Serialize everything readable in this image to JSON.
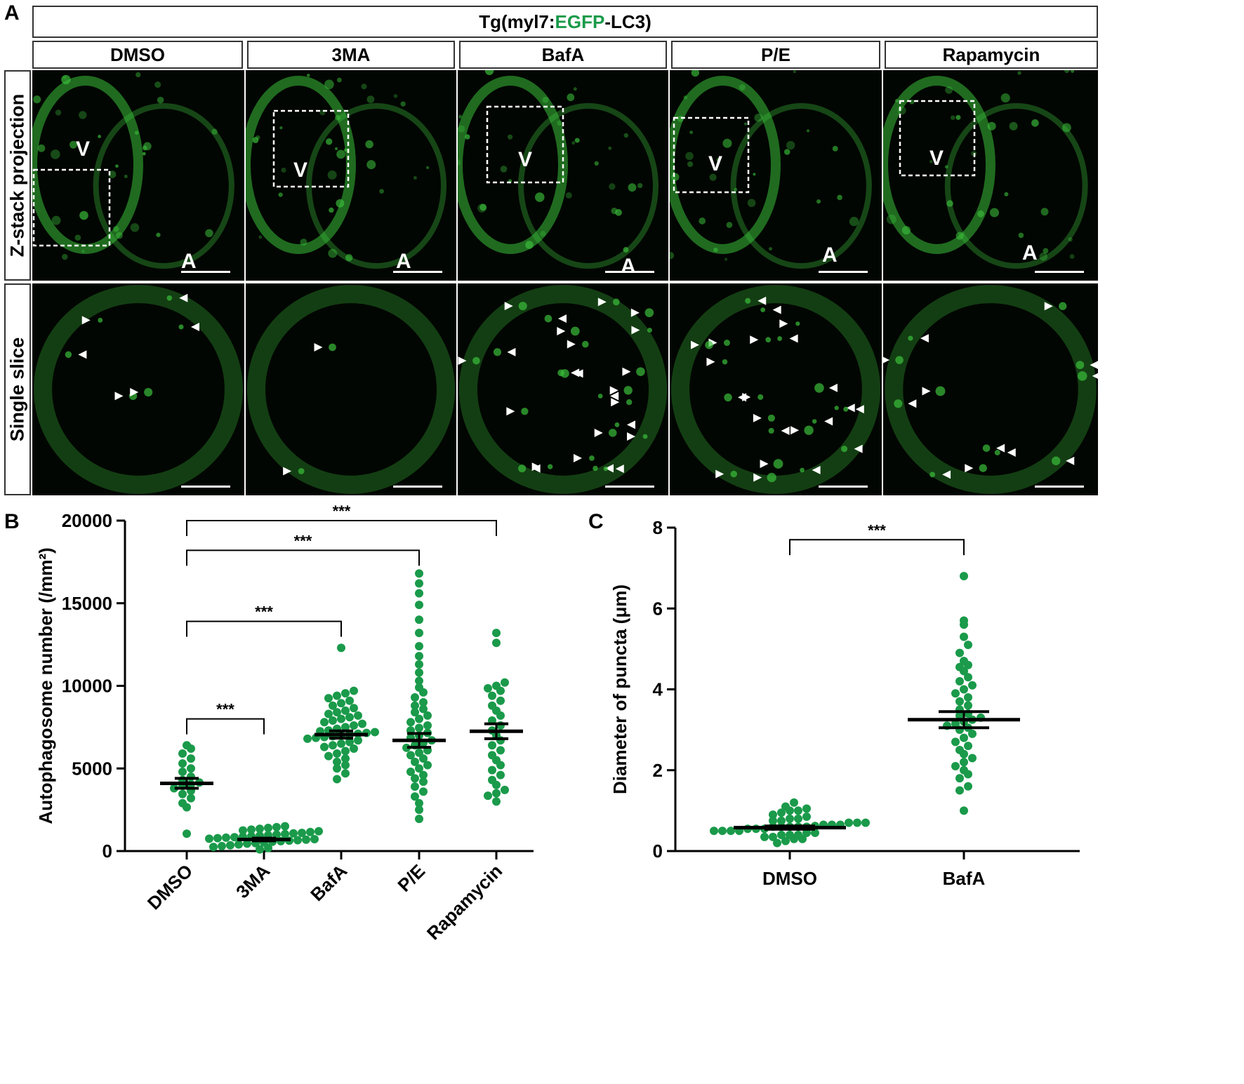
{
  "panels": {
    "a": "A",
    "b": "B",
    "c": "C"
  },
  "panel_a": {
    "title_pre": "Tg(myl7:",
    "title_green": "EGFP",
    "title_post": "-LC3)",
    "conditions": [
      "DMSO",
      "3MA",
      "BafA",
      "P/E",
      "Rapamycin"
    ],
    "rows": [
      "Z-stack projection",
      "Single slice"
    ],
    "chamber_v": "V",
    "chamber_a": "A",
    "colors": {
      "signal": "#3bbf3b",
      "background": "#020602",
      "arrowhead": "#ffffff"
    }
  },
  "chart_data": [
    {
      "type": "scatter",
      "ylabel": "Autophagosome number (/mm²)",
      "categories": [
        "DMSO",
        "3MA",
        "BafA",
        "P/E",
        "Rapamycin"
      ],
      "ylim": [
        0,
        20000
      ],
      "yticks": [
        0,
        5000,
        10000,
        15000,
        20000
      ],
      "point_color": "#1a9a4a",
      "groups": [
        {
          "name": "DMSO",
          "mean": 4100,
          "sem": 300,
          "values": [
            1050,
            2650,
            2900,
            3200,
            3450,
            3650,
            3800,
            3950,
            4050,
            4150,
            4300,
            4500,
            4800,
            5000,
            5300,
            5600,
            5900,
            6200,
            6400
          ]
        },
        {
          "name": "3MA",
          "mean": 700,
          "sem": 80,
          "values": [
            100,
            180,
            250,
            300,
            350,
            400,
            450,
            480,
            520,
            560,
            600,
            630,
            660,
            690,
            720,
            750,
            780,
            810,
            840,
            870,
            900,
            930,
            960,
            1000,
            1030,
            1070,
            1100,
            1150,
            1200,
            1250,
            1300,
            1350,
            1400,
            1450,
            1500
          ]
        },
        {
          "name": "BafA",
          "mean": 7050,
          "sem": 220,
          "values": [
            4350,
            4700,
            5000,
            5200,
            5400,
            5600,
            5750,
            5900,
            6050,
            6200,
            6300,
            6400,
            6500,
            6600,
            6700,
            6800,
            6850,
            6900,
            6950,
            7000,
            7050,
            7100,
            7150,
            7200,
            7250,
            7300,
            7400,
            7500,
            7600,
            7700,
            7800,
            7900,
            8000,
            8100,
            8200,
            8300,
            8400,
            8500,
            8650,
            8800,
            8950,
            9100,
            9250,
            9400,
            9550,
            9700,
            12300
          ]
        },
        {
          "name": "P/E",
          "mean": 6700,
          "sem": 420,
          "values": [
            1950,
            2500,
            2900,
            3300,
            3600,
            3900,
            4200,
            4400,
            4600,
            4800,
            5000,
            5200,
            5400,
            5600,
            5800,
            5950,
            6100,
            6250,
            6400,
            6550,
            6700,
            6850,
            7000,
            7150,
            7300,
            7450,
            7600,
            7800,
            8000,
            8200,
            8400,
            8600,
            8800,
            9000,
            9300,
            9600,
            9900,
            10300,
            10800,
            11300,
            11800,
            12400,
            13200,
            14000,
            14900,
            15600,
            16200,
            16800
          ]
        },
        {
          "name": "Rapamycin",
          "mean": 7250,
          "sem": 450,
          "values": [
            3000,
            3350,
            3500,
            3700,
            4000,
            4300,
            4600,
            4900,
            5200,
            5500,
            5800,
            6100,
            6400,
            6700,
            7000,
            7300,
            7600,
            7900,
            8200,
            8500,
            8800,
            9100,
            9400,
            9700,
            9850,
            10000,
            10200,
            12600,
            13200
          ]
        }
      ],
      "brackets": [
        {
          "from": "DMSO",
          "to": "3MA",
          "label": "***",
          "y": 8000
        },
        {
          "from": "DMSO",
          "to": "BafA",
          "label": "***",
          "y": 13900
        },
        {
          "from": "DMSO",
          "to": "P/E",
          "label": "***",
          "y": 18200
        },
        {
          "from": "DMSO",
          "to": "Rapamycin",
          "label": "***",
          "y": 20000
        }
      ]
    },
    {
      "type": "scatter",
      "ylabel": "Diameter of puncta (μm)",
      "categories": [
        "DMSO",
        "BafA"
      ],
      "ylim": [
        0,
        8
      ],
      "yticks": [
        0,
        2,
        4,
        6,
        8
      ],
      "point_color": "#1a9a4a",
      "groups": [
        {
          "name": "DMSO",
          "mean": 0.58,
          "sem": 0.04,
          "values": [
            0.2,
            0.25,
            0.3,
            0.3,
            0.35,
            0.35,
            0.4,
            0.4,
            0.4,
            0.45,
            0.45,
            0.5,
            0.5,
            0.5,
            0.5,
            0.55,
            0.55,
            0.55,
            0.6,
            0.6,
            0.6,
            0.6,
            0.6,
            0.62,
            0.65,
            0.65,
            0.65,
            0.7,
            0.7,
            0.7,
            0.75,
            0.75,
            0.8,
            0.8,
            0.85,
            0.9,
            0.95,
            1.0,
            1.0,
            1.05,
            1.1,
            1.2
          ]
        },
        {
          "name": "BafA",
          "mean": 3.25,
          "sem": 0.2,
          "values": [
            1.0,
            1.5,
            1.6,
            1.8,
            1.9,
            2.0,
            2.1,
            2.2,
            2.3,
            2.4,
            2.5,
            2.6,
            2.7,
            2.8,
            2.9,
            3.0,
            3.05,
            3.1,
            3.15,
            3.2,
            3.25,
            3.3,
            3.35,
            3.4,
            3.5,
            3.6,
            3.7,
            3.8,
            3.9,
            4.0,
            4.1,
            4.2,
            4.3,
            4.45,
            4.55,
            4.6,
            4.7,
            4.9,
            5.1,
            5.3,
            5.6,
            5.7,
            6.8
          ]
        }
      ],
      "brackets": [
        {
          "from": "DMSO",
          "to": "BafA",
          "label": "***",
          "y": 7.7
        }
      ]
    }
  ]
}
